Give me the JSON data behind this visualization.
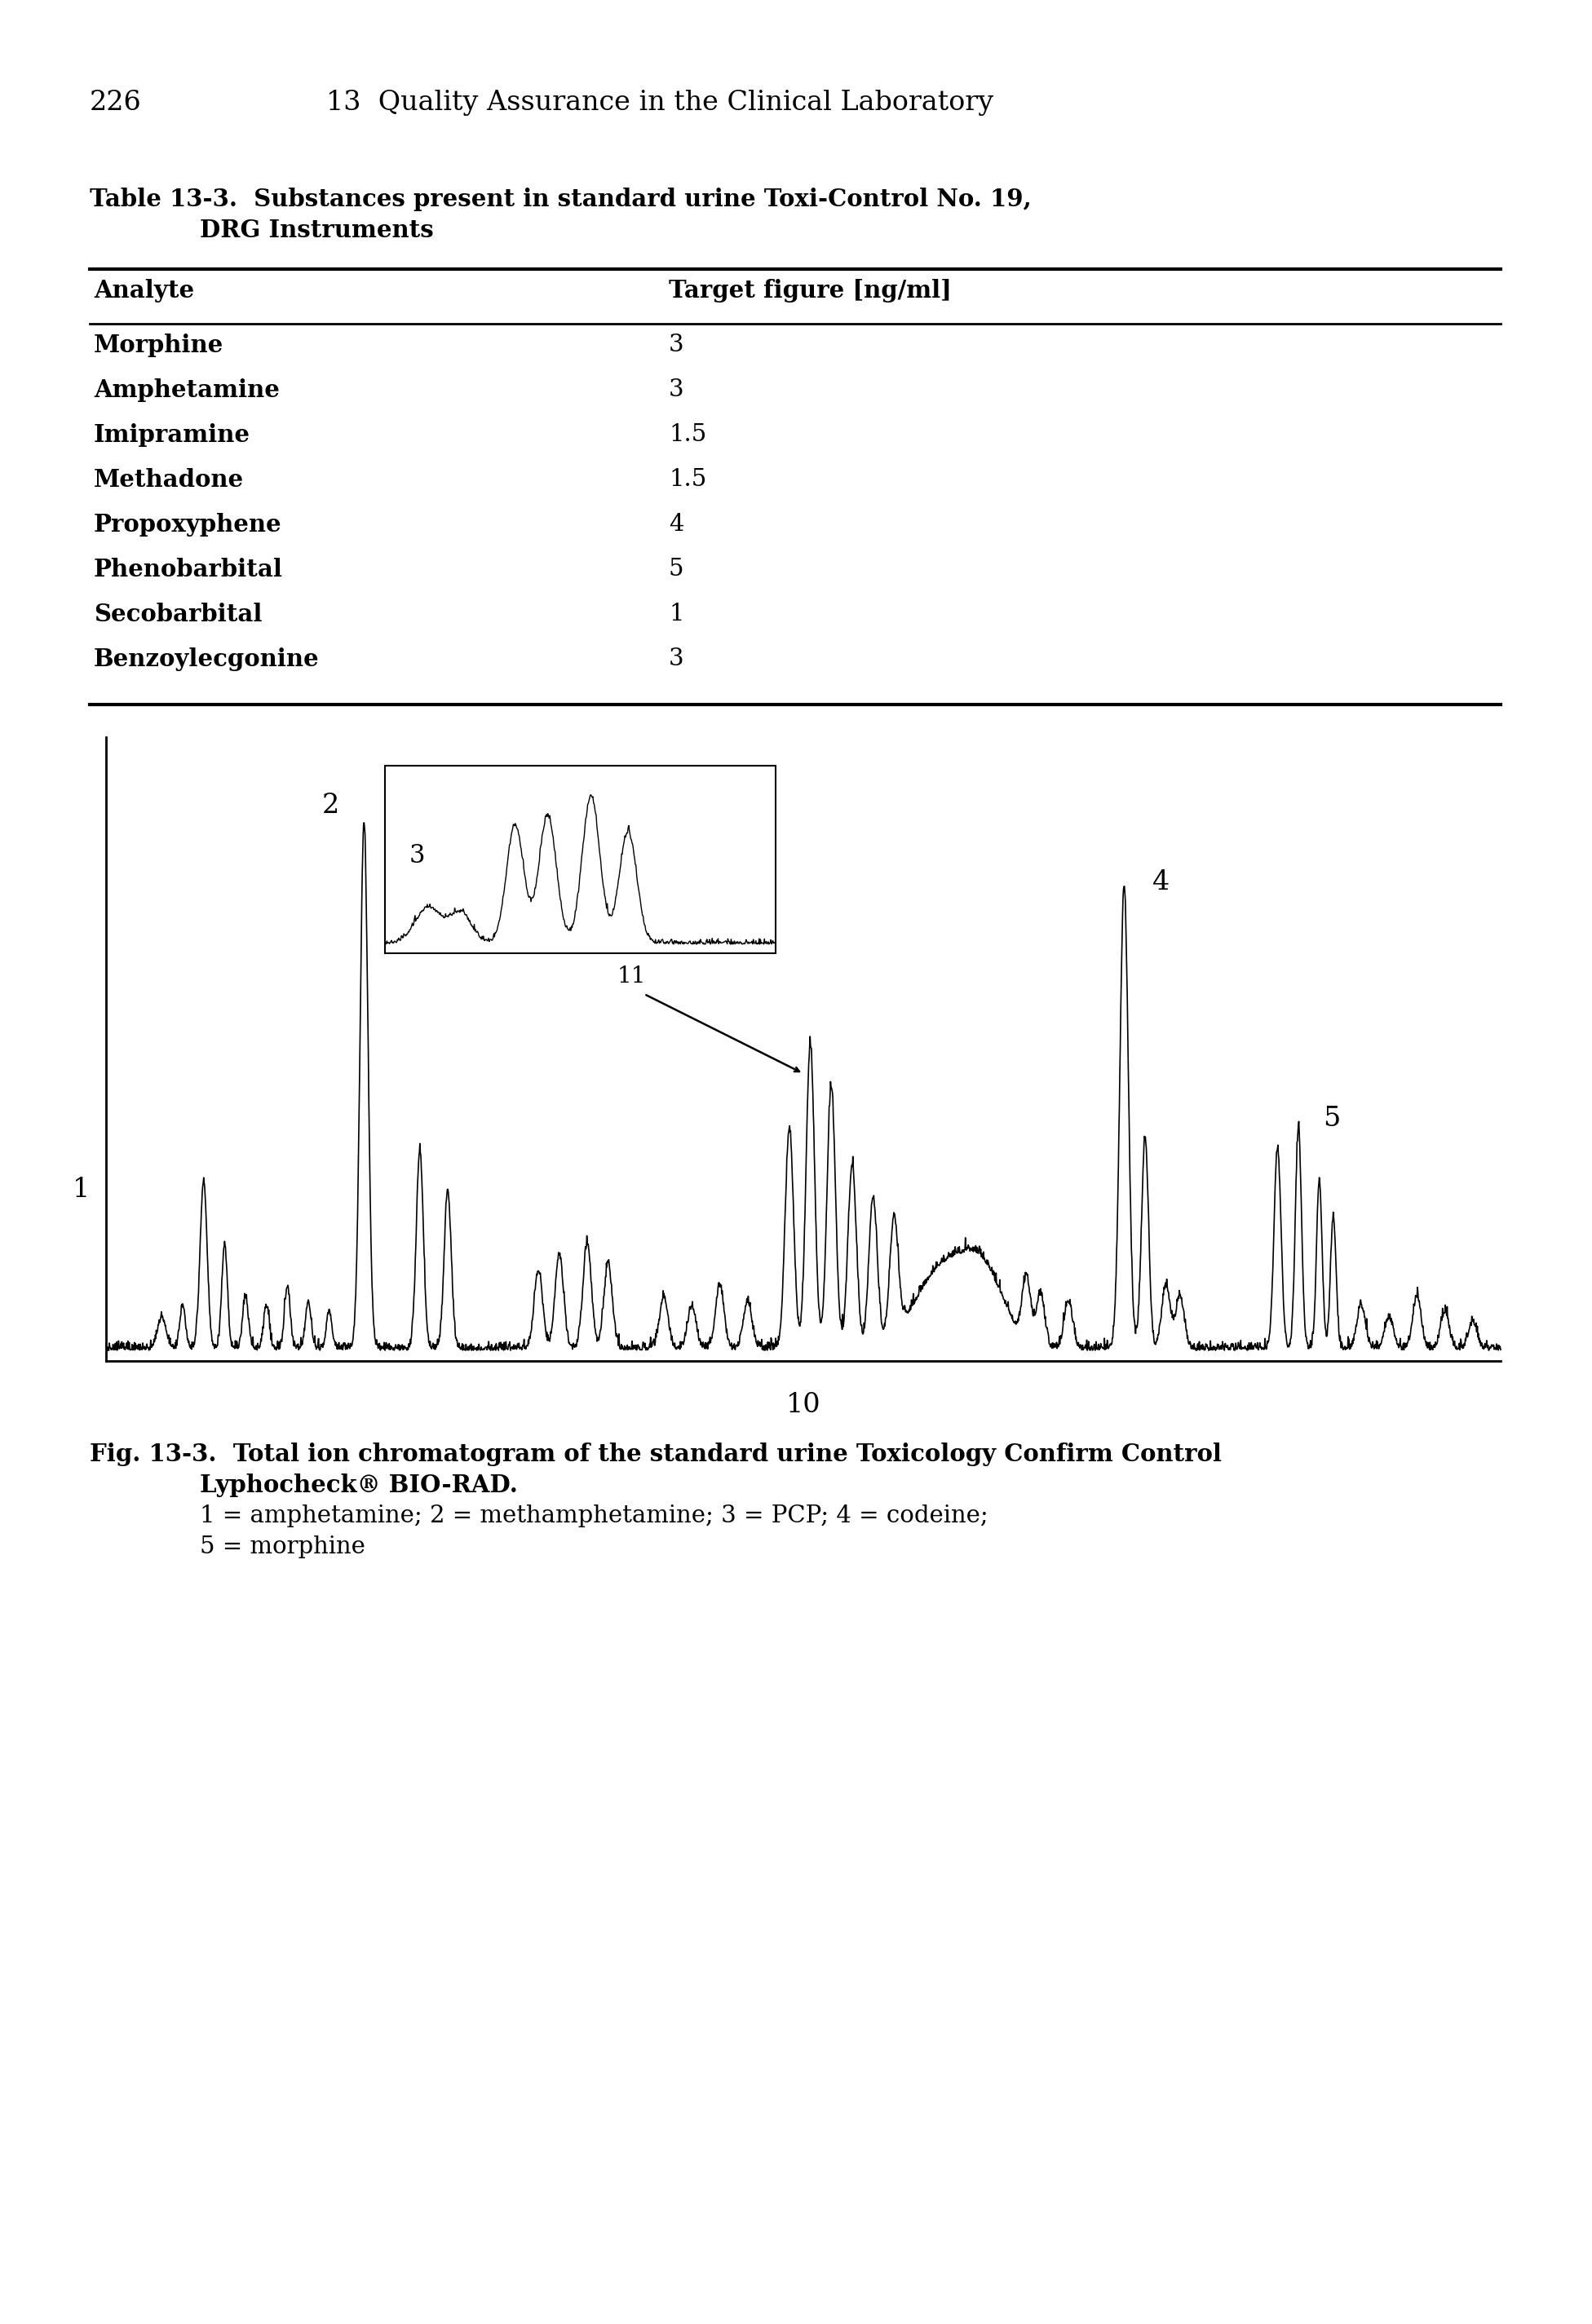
{
  "page_header_num": "226",
  "page_header_title": "13  Quality Assurance in the Clinical Laboratory",
  "table_title_line1": "Table 13-3.  Substances present in standard urine Toxi-Control No. 19,",
  "table_title_line2": "DRG Instruments",
  "table_headers": [
    "Analyte",
    "Target figure [ng/ml]"
  ],
  "table_rows": [
    [
      "Morphine",
      "3"
    ],
    [
      "Amphetamine",
      "3"
    ],
    [
      "Imipramine",
      "1.5"
    ],
    [
      "Methadone",
      "1.5"
    ],
    [
      "Propoxyphene",
      "4"
    ],
    [
      "Phenobarbital",
      "5"
    ],
    [
      "Secobarbital",
      "1"
    ],
    [
      "Benzoylecgonine",
      "3"
    ]
  ],
  "fig_caption_line1": "Fig. 13-3.  Total ion chromatogram of the standard urine Toxicology Confirm Control",
  "fig_caption_line2": "Lyphocheck® BIO-RAD.",
  "fig_caption_line3": "1 = amphetamine; 2 = methamphetamine; 3 = PCP; 4 = codeine;",
  "fig_caption_line4": "5 = morphine",
  "xlabel": "10",
  "background_color": "#ffffff",
  "text_color": "#000000"
}
